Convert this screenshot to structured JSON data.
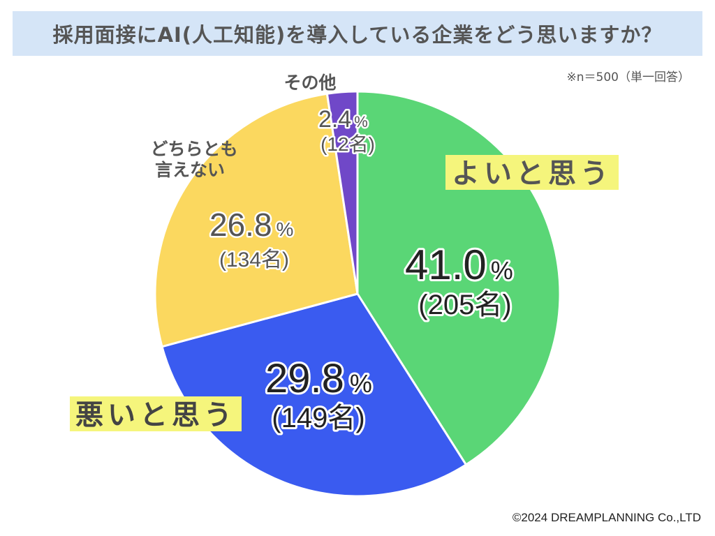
{
  "chart_data": {
    "type": "pie",
    "title": "採用面接にAI(人工知能)を導入している企業をどう思いますか？",
    "note": "※n＝500（単一回答）",
    "slices": [
      {
        "label": "よいと思う",
        "percent_num": "41.0",
        "percent_sign": "%",
        "count_label": "(205名)",
        "value": 41.0,
        "count": 205,
        "color": "#5ad676"
      },
      {
        "label": "悪いと思う",
        "percent_num": "29.8",
        "percent_sign": "%",
        "count_label": "(149名)",
        "value": 29.8,
        "count": 149,
        "color": "#3a5bf0"
      },
      {
        "label": "どちらとも言えない",
        "label_lines": [
          "どちらとも",
          "言えない"
        ],
        "percent_num": "26.8",
        "percent_sign": "%",
        "count_label": "(134名)",
        "value": 26.8,
        "count": 134,
        "color": "#fbd85f"
      },
      {
        "label": "その他",
        "percent_num": "2.4",
        "percent_sign": "%",
        "count_label": "(12名)",
        "value": 2.4,
        "count": 12,
        "color": "#7048c8"
      }
    ]
  },
  "copyright": "©2024 DREAMPLANNING Co.,LTD"
}
